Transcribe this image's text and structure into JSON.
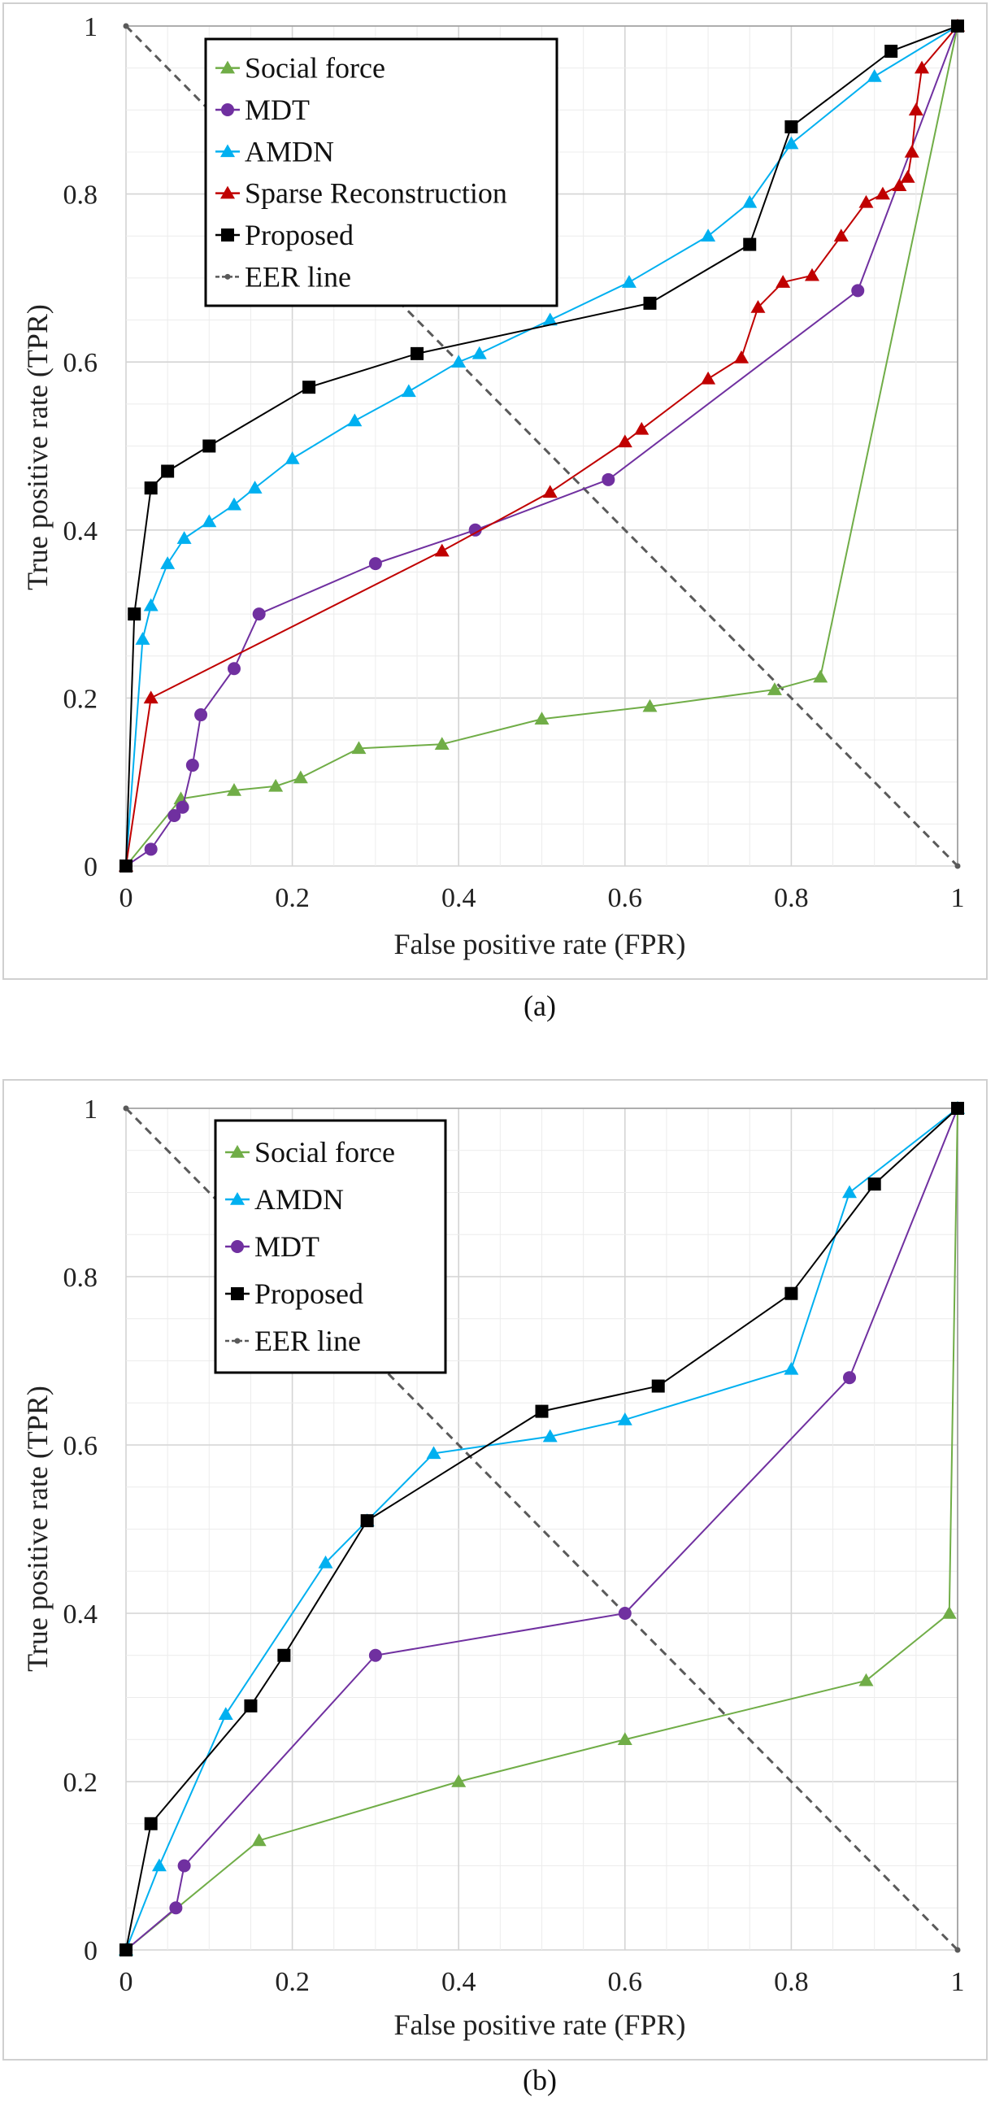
{
  "chart_data": [
    {
      "type": "line",
      "caption": "(a)",
      "xlabel": "False positive rate (FPR)",
      "ylabel": "True positive rate (TPR)",
      "xlim": [
        0,
        1
      ],
      "ylim": [
        0,
        1
      ],
      "xticks": [
        "0",
        "0.2",
        "0.4",
        "0.6",
        "0.8",
        "1"
      ],
      "yticks": [
        "0",
        "0.2",
        "0.4",
        "0.6",
        "0.8",
        "1"
      ],
      "grid": true,
      "legend_position": "top-left",
      "series": [
        {
          "name": "Social force",
          "color": "#70ad47",
          "marker": "triangle",
          "x": [
            0,
            0.066,
            0.13,
            0.18,
            0.21,
            0.28,
            0.38,
            0.5,
            0.63,
            0.78,
            0.835,
            1
          ],
          "y": [
            0,
            0.08,
            0.09,
            0.095,
            0.105,
            0.14,
            0.145,
            0.175,
            0.19,
            0.21,
            0.225,
            1
          ]
        },
        {
          "name": "MDT",
          "color": "#7030a0",
          "marker": "circle",
          "x": [
            0,
            0.03,
            0.058,
            0.068,
            0.08,
            0.09,
            0.13,
            0.16,
            0.3,
            0.42,
            0.58,
            0.88,
            1
          ],
          "y": [
            0,
            0.02,
            0.06,
            0.07,
            0.12,
            0.18,
            0.235,
            0.3,
            0.36,
            0.4,
            0.46,
            0.685,
            1
          ]
        },
        {
          "name": "AMDN",
          "color": "#00b0f0",
          "marker": "triangle",
          "x": [
            0,
            0.02,
            0.03,
            0.05,
            0.07,
            0.1,
            0.13,
            0.155,
            0.2,
            0.275,
            0.34,
            0.4,
            0.425,
            0.51,
            0.605,
            0.7,
            0.75,
            0.8,
            0.9,
            1
          ],
          "y": [
            0,
            0.27,
            0.31,
            0.36,
            0.39,
            0.41,
            0.43,
            0.45,
            0.485,
            0.53,
            0.565,
            0.6,
            0.61,
            0.65,
            0.695,
            0.75,
            0.79,
            0.86,
            0.94,
            1
          ]
        },
        {
          "name": "Sparse Reconstruction",
          "color": "#c00000",
          "marker": "triangle",
          "x": [
            0,
            0.03,
            0.38,
            0.51,
            0.6,
            0.62,
            0.7,
            0.74,
            0.76,
            0.79,
            0.825,
            0.86,
            0.89,
            0.91,
            0.93,
            0.94,
            0.945,
            0.95,
            0.957,
            1
          ],
          "y": [
            0,
            0.2,
            0.375,
            0.445,
            0.505,
            0.52,
            0.58,
            0.605,
            0.665,
            0.695,
            0.703,
            0.75,
            0.79,
            0.8,
            0.81,
            0.82,
            0.85,
            0.9,
            0.95,
            1
          ]
        },
        {
          "name": "Proposed",
          "color": "#000000",
          "marker": "square",
          "x": [
            0,
            0.01,
            0.03,
            0.05,
            0.1,
            0.22,
            0.35,
            0.63,
            0.75,
            0.8,
            0.92,
            1
          ],
          "y": [
            0,
            0.3,
            0.45,
            0.47,
            0.5,
            0.57,
            0.61,
            0.67,
            0.74,
            0.88,
            0.97,
            1
          ]
        },
        {
          "name": "EER line",
          "color": "#595959",
          "marker": "dot",
          "dashed": true,
          "x": [
            0,
            1
          ],
          "y": [
            1,
            0
          ]
        }
      ]
    },
    {
      "type": "line",
      "caption": "(b)",
      "xlabel": "False positive rate (FPR)",
      "ylabel": "True positive rate (TPR)",
      "xlim": [
        0,
        1
      ],
      "ylim": [
        0,
        1
      ],
      "xticks": [
        "0",
        "0.2",
        "0.4",
        "0.6",
        "0.8",
        "1"
      ],
      "yticks": [
        "0",
        "0.2",
        "0.4",
        "0.6",
        "0.8",
        "1"
      ],
      "grid": true,
      "legend_position": "top-left",
      "series": [
        {
          "name": "Social force",
          "color": "#70ad47",
          "marker": "triangle",
          "x": [
            0,
            0.16,
            0.4,
            0.6,
            0.89,
            0.99,
            1
          ],
          "y": [
            0,
            0.13,
            0.2,
            0.25,
            0.32,
            0.4,
            1
          ]
        },
        {
          "name": "AMDN",
          "color": "#00b0f0",
          "marker": "triangle",
          "x": [
            0,
            0.04,
            0.12,
            0.24,
            0.29,
            0.37,
            0.51,
            0.6,
            0.8,
            0.87,
            1
          ],
          "y": [
            0,
            0.1,
            0.28,
            0.46,
            0.51,
            0.59,
            0.61,
            0.63,
            0.69,
            0.9,
            1
          ]
        },
        {
          "name": "MDT",
          "color": "#7030a0",
          "marker": "circle",
          "x": [
            0,
            0.06,
            0.07,
            0.3,
            0.6,
            0.87,
            1
          ],
          "y": [
            0,
            0.05,
            0.1,
            0.35,
            0.4,
            0.68,
            1
          ]
        },
        {
          "name": "Proposed",
          "color": "#000000",
          "marker": "square",
          "x": [
            0,
            0.03,
            0.15,
            0.19,
            0.29,
            0.5,
            0.64,
            0.8,
            0.9,
            1
          ],
          "y": [
            0,
            0.15,
            0.29,
            0.35,
            0.51,
            0.64,
            0.67,
            0.78,
            0.91,
            1
          ]
        },
        {
          "name": "EER line",
          "color": "#595959",
          "marker": "dot",
          "dashed": true,
          "x": [
            0,
            1
          ],
          "y": [
            1,
            0
          ]
        }
      ]
    }
  ]
}
